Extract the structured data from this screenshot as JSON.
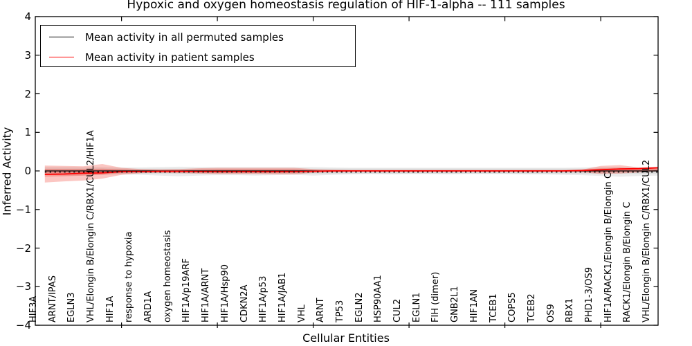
{
  "chart": {
    "title": "Hypoxic and oxygen homeostasis regulation of HIF-1-alpha -- 111 samples",
    "xlabel": "Cellular Entities",
    "ylabel": "Inferred Activity",
    "legend": [
      {
        "label": "Mean activity in all permuted samples",
        "color": "#000000"
      },
      {
        "label": "Mean activity in patient samples",
        "color": "#ff0000"
      }
    ]
  },
  "chart_data": {
    "type": "line",
    "title": "Hypoxic and oxygen homeostasis regulation of HIF-1-alpha -- 111 samples",
    "xlabel": "Cellular Entities",
    "ylabel": "Inferred Activity",
    "ylim": [
      -4,
      4
    ],
    "grid": false,
    "legend_position": "upper left",
    "background": "#ffffff",
    "y_ticks": [
      4,
      3,
      2,
      1,
      0,
      -1,
      -2,
      -3,
      -4
    ],
    "y_tick_labels": [
      "4",
      "3",
      "2",
      "1",
      "0",
      "−1",
      "−2",
      "−3",
      "−4"
    ],
    "x_major_tick_indices": [
      4,
      9,
      14,
      19,
      24,
      29
    ],
    "categories": [
      "HIF3A",
      "ARNT/IPAS",
      "EGLN3",
      "VHL/Elongin B/Elongin C/RBX1/CUL2/HIF1A",
      "HIF1A",
      "response to hypoxia",
      "ARD1A",
      "oxygen homeostasis",
      "HIF1A/p19ARF",
      "HIF1A/ARNT",
      "HIF1A/Hsp90",
      "CDKN2A",
      "HIF1A/p53",
      "HIF1A/JAB1",
      "VHL",
      "ARNT",
      "TP53",
      "EGLN2",
      "HSP90AA1",
      "CUL2",
      "EGLN1",
      "FIH (dimer)",
      "GNB2L1",
      "HIF1AN",
      "TCEB1",
      "COPS5",
      "TCEB2",
      "OS9",
      "RBX1",
      "PHD1-3/OS9",
      "HIF1A/RACK1/Elongin B/Elongin C",
      "RACK1/Elongin B/Elongin C",
      "VHL/Elongin B/Elongin C/RBX1/CUL2"
    ],
    "series": [
      {
        "name": "Mean activity in all permuted samples",
        "color": "#000000",
        "values": [
          0,
          0,
          0,
          0,
          0,
          0,
          0,
          0,
          0,
          0,
          0,
          0,
          0,
          0,
          0,
          0,
          0,
          0,
          0,
          0,
          0,
          0,
          0,
          0,
          0,
          0,
          0,
          0,
          0,
          0,
          0,
          0,
          0
        ]
      },
      {
        "name": "Mean activity in patient samples",
        "color": "#ff0000",
        "values": [
          -0.09,
          -0.08,
          -0.06,
          -0.05,
          -0.02,
          -0.02,
          -0.01,
          -0.01,
          -0.02,
          -0.02,
          -0.02,
          -0.02,
          -0.02,
          -0.02,
          -0.01,
          0,
          0,
          0,
          0,
          0,
          0,
          0,
          0,
          0,
          0,
          0,
          0,
          0,
          0.01,
          0.03,
          0.05,
          0.06,
          0.08
        ]
      }
    ],
    "bands": [
      {
        "name": "permuted-range-outer",
        "fill": "rgba(0,0,0,0.08)",
        "upper": [
          0.1,
          0.1,
          0.1,
          0.1,
          0.09,
          0.09,
          0.1,
          0.11,
          0.1,
          0.1,
          0.1,
          0.1,
          0.1,
          0.1,
          0.1,
          0.09,
          0.08,
          0.08,
          0.08,
          0.08,
          0.08,
          0.08,
          0.08,
          0.08,
          0.08,
          0.08,
          0.08,
          0.08,
          0.09,
          0.1,
          0.1,
          0.1,
          0.1
        ],
        "lower": [
          -0.1,
          -0.12,
          -0.12,
          -0.1,
          -0.09,
          -0.1,
          -0.12,
          -0.14,
          -0.12,
          -0.11,
          -0.11,
          -0.12,
          -0.11,
          -0.1,
          -0.12,
          -0.1,
          -0.09,
          -0.08,
          -0.09,
          -0.08,
          -0.08,
          -0.09,
          -0.08,
          -0.08,
          -0.08,
          -0.09,
          -0.09,
          -0.1,
          -0.11,
          -0.13,
          -0.15,
          -0.13,
          -0.12
        ]
      },
      {
        "name": "permuted-range-inner",
        "fill": "rgba(0,0,0,0.07)",
        "upper": [
          0.06,
          0.06,
          0.06,
          0.06,
          0.06,
          0.06,
          0.06,
          0.06,
          0.06,
          0.06,
          0.06,
          0.06,
          0.06,
          0.06,
          0.06,
          0.06,
          0.06,
          0.06,
          0.06,
          0.06,
          0.06,
          0.06,
          0.06,
          0.06,
          0.06,
          0.06,
          0.06,
          0.06,
          0.06,
          0.06,
          0.06,
          0.06,
          0.06
        ],
        "lower": [
          -0.07,
          -0.07,
          -0.07,
          -0.07,
          -0.07,
          -0.07,
          -0.07,
          -0.07,
          -0.07,
          -0.07,
          -0.07,
          -0.07,
          -0.07,
          -0.07,
          -0.07,
          -0.07,
          -0.07,
          -0.07,
          -0.07,
          -0.07,
          -0.07,
          -0.07,
          -0.07,
          -0.07,
          -0.07,
          -0.07,
          -0.07,
          -0.07,
          -0.07,
          -0.07,
          -0.07,
          -0.07,
          -0.07
        ]
      },
      {
        "name": "patient-range-outer",
        "fill": "rgba(243,65,54,0.30)",
        "upper": [
          0.14,
          0.13,
          0.12,
          0.18,
          0.08,
          0.05,
          0.04,
          0.05,
          0.07,
          0.08,
          0.08,
          0.08,
          0.08,
          0.08,
          0.05,
          0.03,
          0.02,
          0.02,
          0.02,
          0.02,
          0.02,
          0.02,
          0.02,
          0.02,
          0.02,
          0.02,
          0.02,
          0.02,
          0.03,
          0.13,
          0.15,
          0.09,
          0.11
        ],
        "lower": [
          -0.3,
          -0.27,
          -0.25,
          -0.2,
          -0.1,
          -0.06,
          -0.05,
          -0.06,
          -0.07,
          -0.08,
          -0.08,
          -0.08,
          -0.09,
          -0.09,
          -0.05,
          -0.03,
          -0.02,
          -0.02,
          -0.02,
          -0.02,
          -0.02,
          -0.02,
          -0.02,
          -0.02,
          -0.02,
          -0.02,
          -0.02,
          -0.02,
          -0.03,
          -0.08,
          -0.07,
          -0.04,
          -0.01
        ]
      },
      {
        "name": "patient-range-inner",
        "fill": "rgba(243,65,54,0.30)",
        "upper": [
          0.05,
          0.05,
          0.05,
          0.06,
          0.04,
          0.02,
          0.02,
          0.02,
          0.03,
          0.04,
          0.04,
          0.04,
          0.04,
          0.04,
          0.02,
          0.01,
          0.01,
          0.01,
          0.01,
          0.01,
          0.01,
          0.01,
          0.01,
          0.01,
          0.01,
          0.01,
          0.01,
          0.01,
          0.02,
          0.07,
          0.08,
          0.05,
          0.06
        ],
        "lower": [
          -0.15,
          -0.14,
          -0.12,
          -0.1,
          -0.05,
          -0.03,
          -0.02,
          -0.03,
          -0.04,
          -0.05,
          -0.05,
          -0.05,
          -0.05,
          -0.05,
          -0.02,
          -0.01,
          -0.01,
          -0.01,
          -0.01,
          -0.01,
          -0.01,
          -0.01,
          -0.01,
          -0.01,
          -0.01,
          -0.01,
          -0.01,
          -0.01,
          -0.02,
          -0.04,
          -0.03,
          -0.02,
          0.0
        ]
      }
    ]
  }
}
